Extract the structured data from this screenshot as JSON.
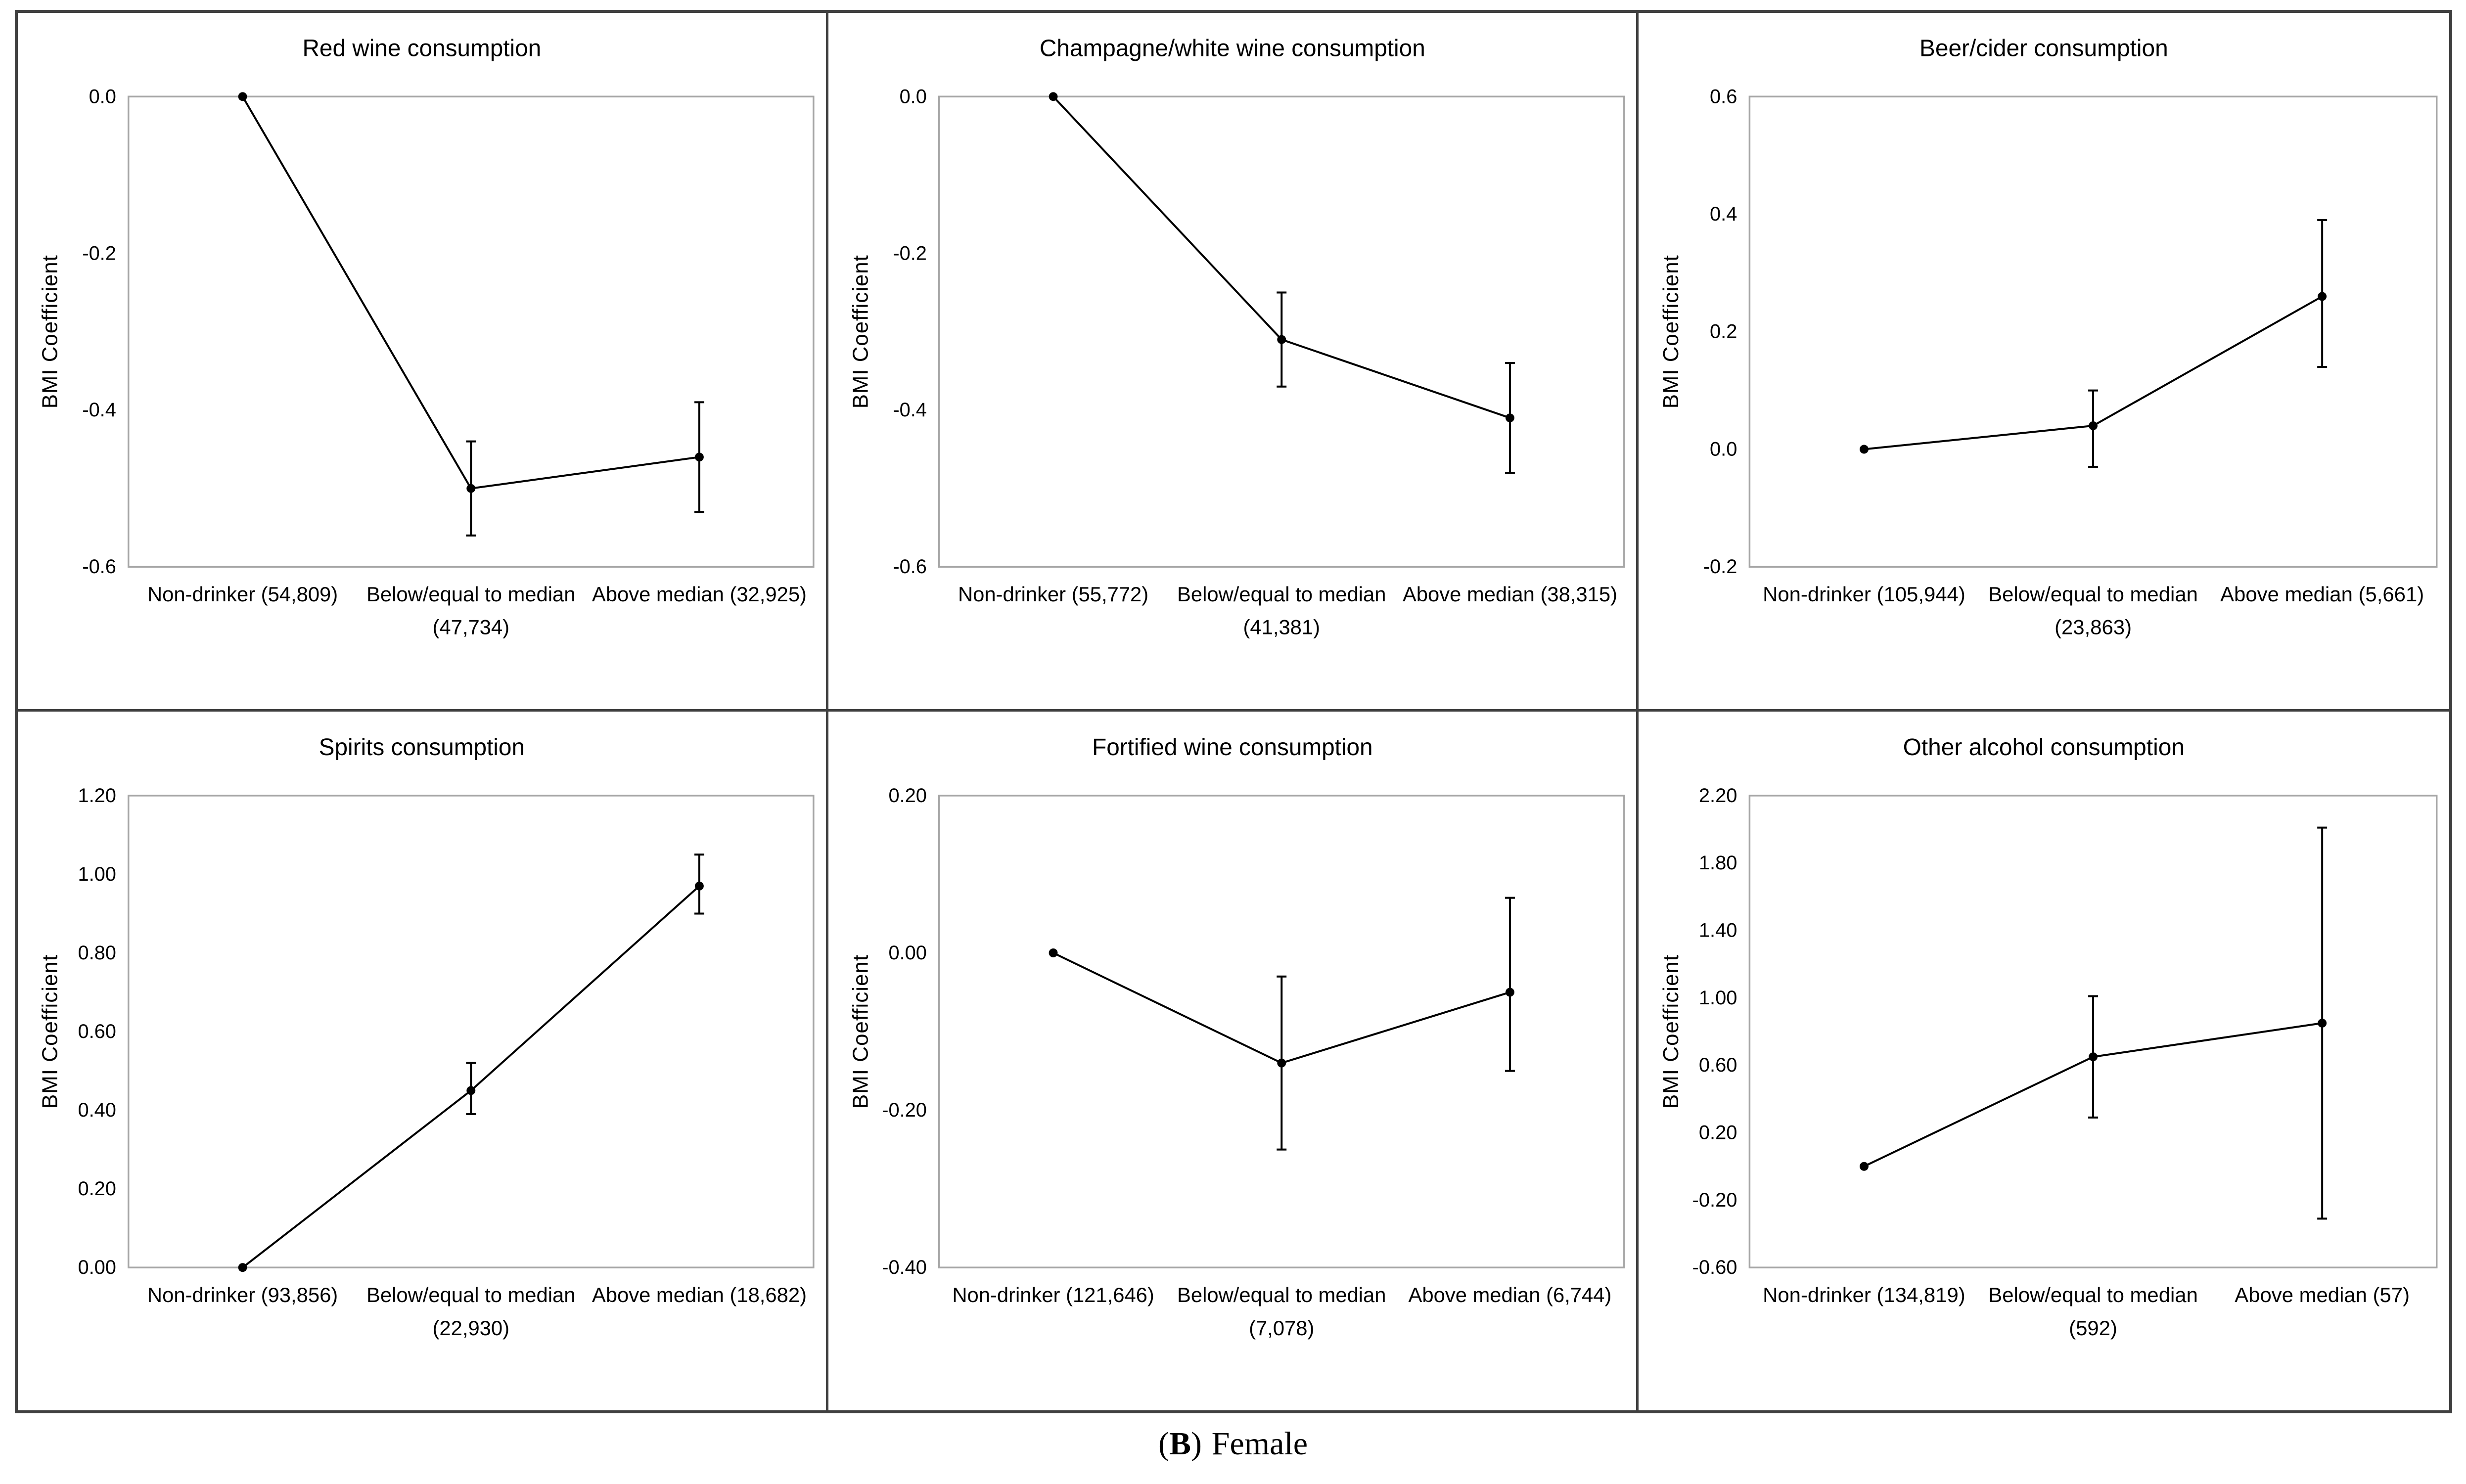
{
  "figure": {
    "ylabel": "BMI Coefficient",
    "grid_lines": false,
    "legend": "none",
    "rows": 2,
    "cols": 3
  },
  "colors": {
    "ink": "#000000",
    "plot_frame": "#a6a6a6",
    "panel_divider": "#404040",
    "background": "#ffffff"
  },
  "caption": {
    "open": "(",
    "bold": "B",
    "close": ")",
    "text": "Female"
  },
  "chart_data": [
    {
      "type": "line",
      "title": "Red wine consumption",
      "ylabel": "BMI Coefficient",
      "ylim": [
        -0.6,
        0.0
      ],
      "yticks": [
        "0.0",
        "-0.2",
        "-0.4",
        "-0.6"
      ],
      "categories": [
        [
          "Non-drinker (54,809)"
        ],
        [
          "Below/equal to median",
          "(47,734)"
        ],
        [
          "Above median (32,925)"
        ]
      ],
      "values": [
        0.0,
        -0.5,
        -0.46
      ],
      "ci_low": [
        null,
        -0.56,
        -0.53
      ],
      "ci_high": [
        null,
        -0.44,
        -0.39
      ]
    },
    {
      "type": "line",
      "title": "Champagne/white wine consumption",
      "ylabel": "BMI Coefficient",
      "ylim": [
        -0.6,
        0.0
      ],
      "yticks": [
        "0.0",
        "-0.2",
        "-0.4",
        "-0.6"
      ],
      "categories": [
        [
          "Non-drinker (55,772)"
        ],
        [
          "Below/equal to median",
          "(41,381)"
        ],
        [
          "Above median (38,315)"
        ]
      ],
      "values": [
        0.0,
        -0.31,
        -0.41
      ],
      "ci_low": [
        null,
        -0.37,
        -0.48
      ],
      "ci_high": [
        null,
        -0.25,
        -0.34
      ]
    },
    {
      "type": "line",
      "title": "Beer/cider consumption",
      "ylabel": "BMI Coefficient",
      "ylim": [
        -0.2,
        0.6
      ],
      "yticks": [
        "0.6",
        "0.4",
        "0.2",
        "0.0",
        "-0.2"
      ],
      "categories": [
        [
          "Non-drinker (105,944)"
        ],
        [
          "Below/equal to median",
          "(23,863)"
        ],
        [
          "Above median (5,661)"
        ]
      ],
      "values": [
        0.0,
        0.04,
        0.26
      ],
      "ci_low": [
        null,
        -0.03,
        0.14
      ],
      "ci_high": [
        null,
        0.1,
        0.39
      ]
    },
    {
      "type": "line",
      "title": "Spirits consumption",
      "ylabel": "BMI Coefficient",
      "ylim": [
        0.0,
        1.2
      ],
      "yticks": [
        "1.20",
        "1.00",
        "0.80",
        "0.60",
        "0.40",
        "0.20",
        "0.00"
      ],
      "categories": [
        [
          "Non-drinker (93,856)"
        ],
        [
          "Below/equal to median",
          "(22,930)"
        ],
        [
          "Above median (18,682)"
        ]
      ],
      "values": [
        0.0,
        0.45,
        0.97
      ],
      "ci_low": [
        null,
        0.39,
        0.9
      ],
      "ci_high": [
        null,
        0.52,
        1.05
      ]
    },
    {
      "type": "line",
      "title": "Fortified wine consumption",
      "ylabel": "BMI Coefficient",
      "ylim": [
        -0.4,
        0.2
      ],
      "yticks": [
        "0.20",
        "0.00",
        "-0.20",
        "-0.40"
      ],
      "categories": [
        [
          "Non-drinker (121,646)"
        ],
        [
          "Below/equal to median",
          "(7,078)"
        ],
        [
          "Above median (6,744)"
        ]
      ],
      "values": [
        0.0,
        -0.14,
        -0.05
      ],
      "ci_low": [
        null,
        -0.25,
        -0.15
      ],
      "ci_high": [
        null,
        -0.03,
        0.07
      ]
    },
    {
      "type": "line",
      "title": "Other alcohol consumption",
      "ylabel": "BMI Coefficient",
      "ylim": [
        -0.6,
        2.2
      ],
      "yticks": [
        "2.20",
        "1.80",
        "1.40",
        "1.00",
        "0.60",
        "0.20",
        "-0.20",
        "-0.60"
      ],
      "categories": [
        [
          "Non-drinker (134,819)"
        ],
        [
          "Below/equal to median",
          "(592)"
        ],
        [
          "Above median (57)"
        ]
      ],
      "values": [
        0.0,
        0.65,
        0.85
      ],
      "ci_low": [
        null,
        0.29,
        -0.31
      ],
      "ci_high": [
        null,
        1.01,
        2.01
      ]
    }
  ]
}
